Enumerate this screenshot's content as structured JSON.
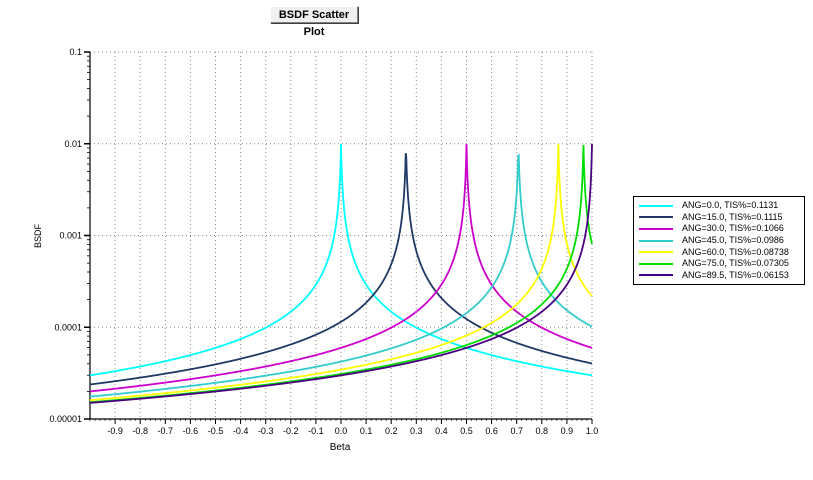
{
  "title_button": "BSDF Scatter Plot",
  "chart_data": {
    "type": "line",
    "xlabel": "Beta",
    "ylabel": "BSDF",
    "xlim": [
      -1.0,
      1.0
    ],
    "ylim": [
      1e-05,
      0.1
    ],
    "yscale": "log",
    "grid": true,
    "legend_position": "right",
    "x_ticks": [
      "-0.9",
      "-0.8",
      "-0.7",
      "-0.6",
      "-0.5",
      "-0.4",
      "-0.3",
      "-0.2",
      "-0.1",
      "0.0",
      "0.1",
      "0.2",
      "0.3",
      "0.4",
      "0.5",
      "0.6",
      "0.7",
      "0.8",
      "0.9",
      "1.0"
    ],
    "y_ticks": [
      "0.1",
      "0.01",
      "0.001",
      "0.0001",
      "0.00001"
    ],
    "series": [
      {
        "name": "ANG=0.0, TIS%=0.1131",
        "color": "#00ffff",
        "peak_beta": 0.0,
        "k": 0.0003
      },
      {
        "name": "ANG=15.0, TIS%=0.1115",
        "color": "#1f3864",
        "peak_beta": 0.2588,
        "k": 0.0003
      },
      {
        "name": "ANG=30.0, TIS%=0.1066",
        "color": "#cc00cc",
        "peak_beta": 0.5,
        "k": 0.0003
      },
      {
        "name": "ANG=45.0, TIS%=0.0986",
        "color": "#33cccc",
        "peak_beta": 0.7071,
        "k": 0.0003
      },
      {
        "name": "ANG=60.0, TIS%=0.08738",
        "color": "#ffff00",
        "peak_beta": 0.866,
        "k": 0.0003
      },
      {
        "name": "ANG=75.0, TIS%=0.07305",
        "color": "#00dd00",
        "peak_beta": 0.9659,
        "k": 0.0003
      },
      {
        "name": "ANG=89.5, TIS%=0.06153",
        "color": "#4b0082",
        "peak_beta": 1.0,
        "k": 0.0003
      }
    ]
  }
}
